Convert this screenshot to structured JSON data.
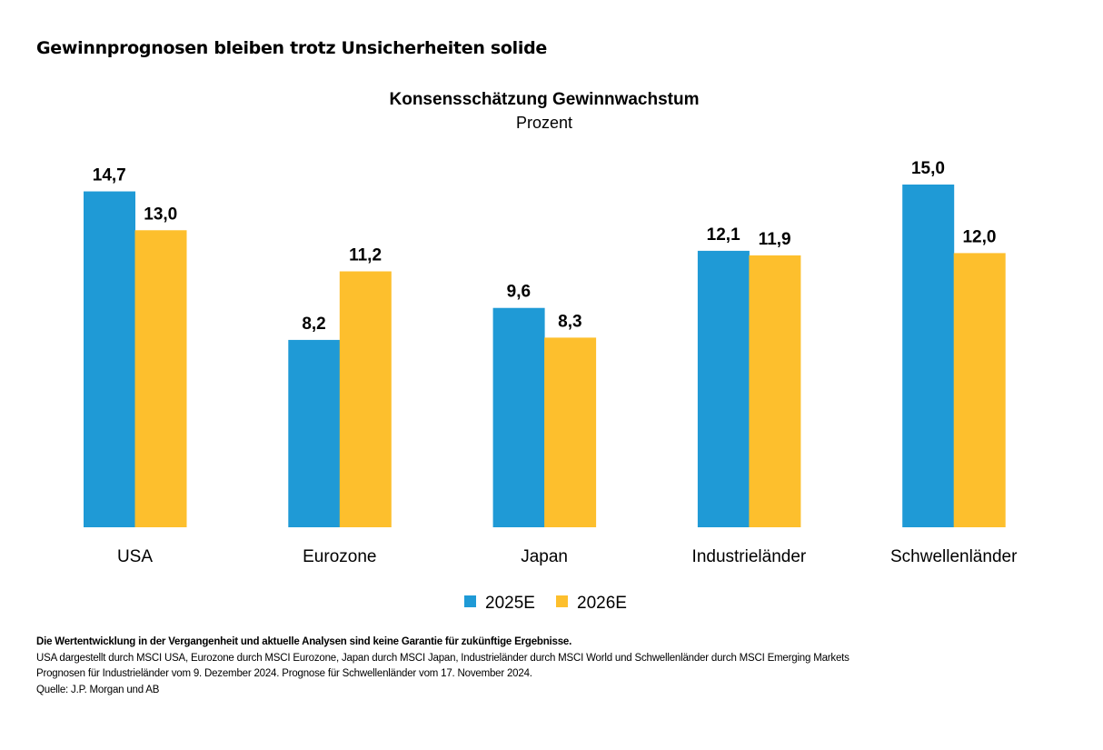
{
  "headline": "Gewinnprognosen bleiben trotz Unsicherheiten solide",
  "chart_data": {
    "type": "bar",
    "title": "Konsensschätzung Gewinnwachstum",
    "subtitle": "Prozent",
    "xlabel": "",
    "ylabel": "",
    "ylim": [
      0,
      15
    ],
    "grid": false,
    "legend_position": "bottom-center",
    "categories": [
      "USA",
      "Eurozone",
      "Japan",
      "Industrieländer",
      "Schwellenländer"
    ],
    "series": [
      {
        "name": "2025E",
        "color": "#1f9ad6",
        "values": [
          14.7,
          8.2,
          9.6,
          12.1,
          15.0
        ],
        "labels": [
          "14,7",
          "8,2",
          "9,6",
          "12,1",
          "15,0"
        ]
      },
      {
        "name": "2026E",
        "color": "#fdbf2d",
        "values": [
          13.0,
          11.2,
          8.3,
          11.9,
          12.0
        ],
        "labels": [
          "13,0",
          "11,2",
          "8,3",
          "11,9",
          "12,0"
        ]
      }
    ]
  },
  "footer": {
    "disclaimer": "Die Wertentwicklung in der Vergangenheit und aktuelle Analysen sind keine Garantie für zukünftige Ergebnisse.",
    "note1": "USA dargestellt durch MSCI USA, Eurozone durch MSCI Eurozone, Japan durch MSCI Japan, Industrieländer durch MSCI World und Schwellenländer durch MSCI Emerging Markets",
    "note2": "Prognosen für Industrieländer vom 9. Dezember 2024. Prognose für Schwellenländer vom 17. November 2024.",
    "source": "Quelle: J.P. Morgan und AB"
  }
}
